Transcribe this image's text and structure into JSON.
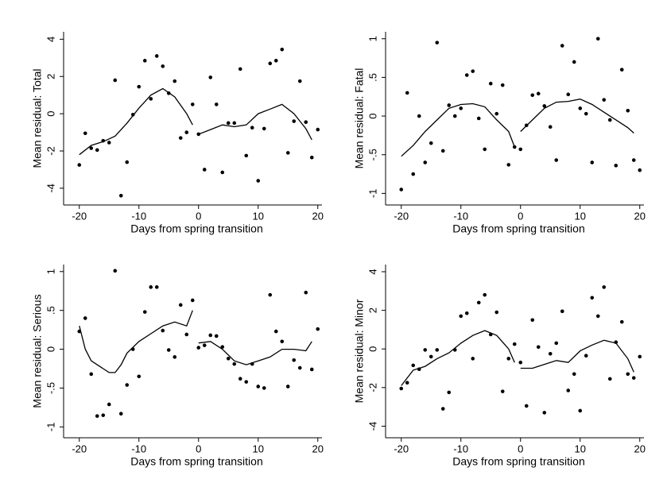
{
  "chart_data": [
    {
      "type": "scatter",
      "x_label": "Days from spring transition",
      "y_label": "Mean residual: Total",
      "color": "#000000",
      "xlim": [
        -21.3,
        20.7
      ],
      "ylim": [
        -4.9,
        4.4
      ],
      "xticks": [
        -20,
        -10,
        0,
        10,
        20
      ],
      "yticks": [
        -4,
        -2,
        0,
        2,
        4
      ],
      "x": [
        -20,
        -19,
        -18,
        -17,
        -16,
        -15,
        -14,
        -13,
        -12,
        -11,
        -10,
        -9,
        -8,
        -7,
        -6,
        -5,
        -4,
        -3,
        -2,
        -1,
        0,
        1,
        2,
        3,
        4,
        5,
        6,
        7,
        8,
        9,
        10,
        11,
        12,
        13,
        14,
        15,
        16,
        17,
        18,
        19,
        20
      ],
      "values": [
        -2.75,
        -1.05,
        -1.85,
        -1.95,
        -1.45,
        -1.55,
        1.8,
        -4.4,
        -2.6,
        -0.05,
        1.45,
        2.85,
        0.8,
        3.1,
        2.55,
        1.1,
        1.75,
        -1.3,
        -1.0,
        0.5,
        -1.1,
        -3.0,
        1.95,
        0.5,
        -3.15,
        -0.5,
        -0.5,
        2.4,
        -2.25,
        -0.75,
        -3.6,
        -0.8,
        2.7,
        2.85,
        3.45,
        -2.1,
        -0.4,
        1.75,
        -0.45,
        -2.35,
        -0.85
      ],
      "fit": [
        {
          "x": [
            -20,
            -18,
            -16,
            -14,
            -12,
            -10,
            -8,
            -6,
            -4,
            -2,
            -1
          ],
          "values": [
            -2.2,
            -1.7,
            -1.5,
            -1.2,
            -0.5,
            0.3,
            1.0,
            1.35,
            0.9,
            0.0,
            -0.6
          ]
        },
        {
          "x": [
            0,
            2,
            4,
            6,
            8,
            10,
            12,
            14,
            16,
            18,
            19
          ],
          "values": [
            -1.1,
            -0.85,
            -0.6,
            -0.7,
            -0.6,
            0.0,
            0.25,
            0.5,
            0.0,
            -0.8,
            -1.4
          ]
        }
      ]
    },
    {
      "type": "scatter",
      "x_label": "Days from spring transition",
      "y_label": "Mean residual: Fatal",
      "color": "#000000",
      "xlim": [
        -21.3,
        20.7
      ],
      "ylim": [
        -1.15,
        1.09
      ],
      "xticks": [
        -20,
        -10,
        0,
        10,
        20
      ],
      "yticks": [
        -1,
        {
          "value": -0.5,
          "label": "-.5"
        },
        0,
        {
          "value": 0.5,
          "label": ".5"
        },
        1
      ],
      "x": [
        -20,
        -19,
        -18,
        -17,
        -16,
        -15,
        -14,
        -13,
        -12,
        -11,
        -10,
        -9,
        -8,
        -7,
        -6,
        -5,
        -4,
        -3,
        -2,
        -1,
        0,
        1,
        2,
        3,
        4,
        5,
        6,
        7,
        8,
        9,
        10,
        11,
        12,
        13,
        14,
        15,
        16,
        17,
        18,
        19,
        20
      ],
      "values": [
        -0.95,
        0.3,
        -0.75,
        0,
        -0.6,
        -0.35,
        0.95,
        -0.45,
        0.14,
        0,
        0.1,
        0.53,
        0.58,
        -0.03,
        -0.43,
        0.42,
        0.03,
        0.4,
        -0.63,
        -0.4,
        -0.43,
        -0.12,
        0.27,
        0.29,
        0.13,
        -0.14,
        -0.57,
        0.91,
        0.28,
        0.7,
        0.1,
        0.03,
        -0.6,
        1.0,
        0.21,
        -0.05,
        -0.64,
        0.6,
        0.07,
        -0.57,
        -0.7
      ],
      "fit": [
        {
          "x": [
            -20,
            -18,
            -16,
            -14,
            -12,
            -10,
            -8,
            -6,
            -4,
            -2,
            -1
          ],
          "values": [
            -0.52,
            -0.38,
            -0.2,
            -0.05,
            0.1,
            0.15,
            0.16,
            0.12,
            -0.05,
            -0.2,
            -0.4
          ]
        },
        {
          "x": [
            0,
            2,
            4,
            6,
            8,
            10,
            12,
            14,
            16,
            18,
            19
          ],
          "values": [
            -0.2,
            -0.05,
            0.1,
            0.18,
            0.19,
            0.22,
            0.15,
            0.05,
            -0.05,
            -0.15,
            -0.22
          ]
        }
      ]
    },
    {
      "type": "scatter",
      "x_label": "Days from spring transition",
      "y_label": "Mean residual: Serious",
      "color": "#000000",
      "xlim": [
        -21.3,
        20.7
      ],
      "ylim": [
        -1.14,
        1.09
      ],
      "xticks": [
        -20,
        -10,
        0,
        10,
        20
      ],
      "yticks": [
        -1,
        {
          "value": -0.5,
          "label": "-.5"
        },
        0,
        {
          "value": 0.5,
          "label": ".5"
        },
        1
      ],
      "x": [
        -20,
        -19,
        -18,
        -17,
        -16,
        -15,
        -14,
        -13,
        -12,
        -11,
        -10,
        -9,
        -8,
        -7,
        -6,
        -5,
        -4,
        -3,
        -2,
        -1,
        0,
        1,
        2,
        3,
        4,
        5,
        6,
        7,
        8,
        9,
        10,
        11,
        12,
        13,
        14,
        15,
        16,
        17,
        18,
        19,
        20
      ],
      "values": [
        0.23,
        0.4,
        -0.32,
        -0.86,
        -0.85,
        -0.71,
        1.01,
        -0.83,
        -0.46,
        0,
        -0.35,
        0.48,
        0.8,
        0.8,
        0.24,
        -0.01,
        -0.1,
        0.57,
        0.19,
        0.63,
        0.02,
        0.05,
        0.18,
        0.17,
        0.03,
        -0.12,
        -0.19,
        -0.38,
        -0.42,
        -0.19,
        -0.48,
        -0.5,
        0.7,
        0.23,
        0.1,
        -0.48,
        -0.14,
        -0.24,
        0.73,
        -0.26,
        0.26
      ],
      "fit": [
        {
          "x": [
            -20,
            -19,
            -18,
            -16,
            -15,
            -14,
            -13,
            -12,
            -10,
            -8,
            -6,
            -4,
            -2,
            -1
          ],
          "values": [
            0.3,
            0.0,
            -0.15,
            -0.25,
            -0.3,
            -0.3,
            -0.2,
            -0.05,
            0.1,
            0.2,
            0.3,
            0.35,
            0.3,
            0.5
          ]
        },
        {
          "x": [
            0,
            2,
            4,
            6,
            8,
            10,
            12,
            14,
            16,
            18,
            19
          ],
          "values": [
            0.08,
            0.1,
            0.0,
            -0.15,
            -0.2,
            -0.15,
            -0.1,
            0.0,
            0.0,
            -0.02,
            0.1
          ]
        }
      ]
    },
    {
      "type": "scatter",
      "x_label": "Days from spring transition",
      "y_label": "Mean residual: Minor",
      "color": "#000000",
      "xlim": [
        -21.3,
        20.7
      ],
      "ylim": [
        -4.6,
        4.37
      ],
      "xticks": [
        -20,
        -10,
        0,
        10,
        20
      ],
      "yticks": [
        -4,
        -2,
        0,
        2,
        4
      ],
      "x": [
        -20,
        -19,
        -18,
        -17,
        -16,
        -15,
        -14,
        -13,
        -12,
        -11,
        -10,
        -9,
        -8,
        -7,
        -6,
        -5,
        -4,
        -3,
        -2,
        -1,
        0,
        1,
        2,
        3,
        4,
        5,
        6,
        7,
        8,
        9,
        10,
        11,
        12,
        13,
        14,
        15,
        16,
        17,
        18,
        19,
        20
      ],
      "values": [
        -2.05,
        -1.75,
        -0.85,
        -1.05,
        -0.05,
        -0.4,
        -0.05,
        -3.1,
        -2.25,
        -0.05,
        1.7,
        1.85,
        -0.5,
        2.4,
        2.8,
        0.75,
        1.9,
        -2.2,
        -0.5,
        0.25,
        -0.7,
        -2.95,
        1.5,
        0.1,
        -3.3,
        -0.25,
        0.3,
        1.95,
        -2.15,
        -1.3,
        -3.2,
        -0.35,
        2.65,
        1.7,
        3.2,
        -1.55,
        0.35,
        1.4,
        -1.3,
        -1.5,
        -0.4
      ],
      "fit": [
        {
          "x": [
            -20,
            -18,
            -16,
            -14,
            -12,
            -10,
            -8,
            -6,
            -4,
            -2,
            -1
          ],
          "values": [
            -1.9,
            -1.1,
            -0.9,
            -0.5,
            -0.2,
            0.3,
            0.7,
            0.95,
            0.7,
            0.0,
            -0.7
          ]
        },
        {
          "x": [
            0,
            2,
            4,
            6,
            8,
            10,
            12,
            14,
            16,
            18,
            19
          ],
          "values": [
            -1.0,
            -1.0,
            -0.8,
            -0.6,
            -0.7,
            -0.1,
            0.2,
            0.45,
            0.3,
            -0.5,
            -1.2
          ]
        }
      ]
    }
  ]
}
